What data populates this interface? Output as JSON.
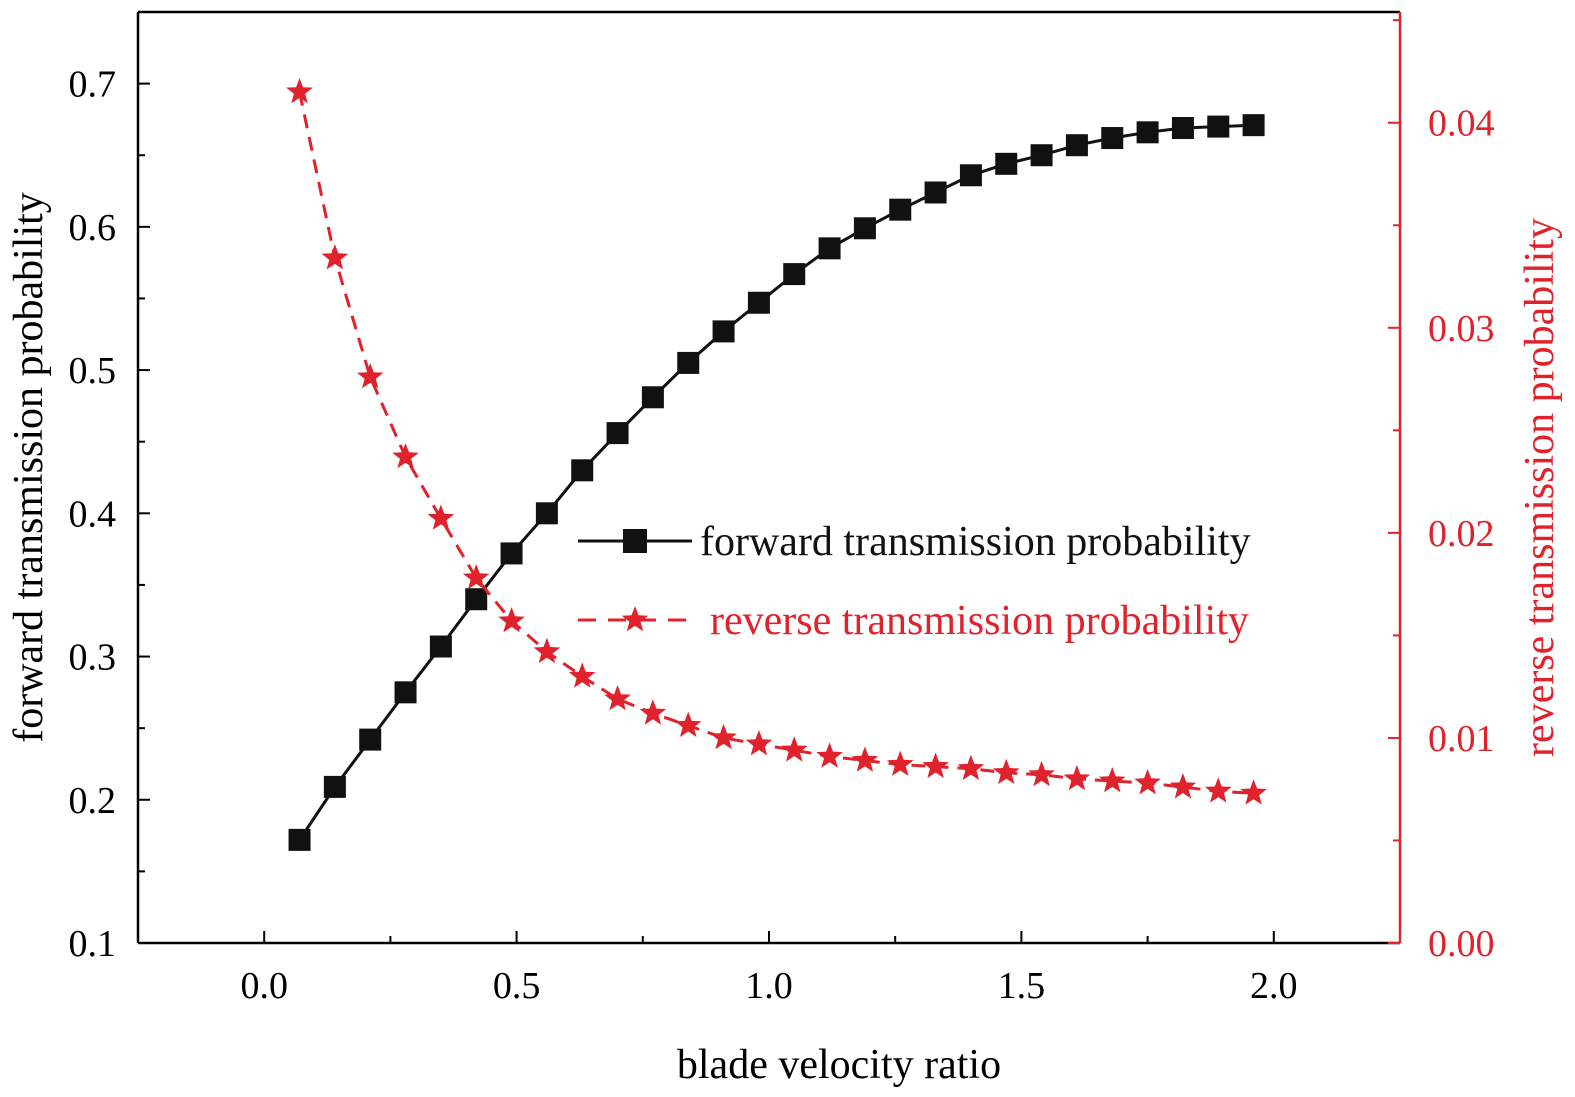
{
  "chart_data": {
    "type": "line",
    "xlabel": "blade velocity ratio",
    "ylabel": "forward transmission probability",
    "ylabel_right": "reverse transmission probability",
    "xlim": [
      -0.25,
      2.25
    ],
    "ylim": [
      0.1,
      0.75
    ],
    "ylim_right": [
      0.0,
      0.0454
    ],
    "x_ticks": [
      "0.0",
      "0.5",
      "1.0",
      "1.5",
      "2.0"
    ],
    "y_ticks": [
      "0.1",
      "0.2",
      "0.3",
      "0.4",
      "0.5",
      "0.6",
      "0.7"
    ],
    "y_ticks_right": [
      "0.00",
      "0.01",
      "0.02",
      "0.03",
      "0.04"
    ],
    "legend_position": "center-right",
    "series": [
      {
        "name": "forward transmission probability",
        "axis": "left",
        "color": "#111111",
        "marker": "square",
        "line": "solid",
        "x": [
          0.07,
          0.14,
          0.21,
          0.28,
          0.35,
          0.42,
          0.49,
          0.56,
          0.63,
          0.7,
          0.77,
          0.84,
          0.91,
          0.98,
          1.05,
          1.12,
          1.19,
          1.26,
          1.33,
          1.4,
          1.47,
          1.54,
          1.61,
          1.68,
          1.75,
          1.82,
          1.89,
          1.96
        ],
        "y": [
          0.172,
          0.209,
          0.242,
          0.275,
          0.307,
          0.34,
          0.372,
          0.4,
          0.43,
          0.456,
          0.481,
          0.505,
          0.527,
          0.547,
          0.567,
          0.585,
          0.599,
          0.612,
          0.624,
          0.636,
          0.644,
          0.65,
          0.657,
          0.662,
          0.666,
          0.669,
          0.67,
          0.671
        ]
      },
      {
        "name": "reverse transmission probability",
        "axis": "right",
        "color": "#e0222c",
        "marker": "star",
        "line": "dashed",
        "x": [
          0.07,
          0.14,
          0.21,
          0.28,
          0.35,
          0.42,
          0.49,
          0.56,
          0.63,
          0.7,
          0.77,
          0.84,
          0.91,
          0.98,
          1.05,
          1.12,
          1.19,
          1.26,
          1.33,
          1.4,
          1.47,
          1.54,
          1.61,
          1.68,
          1.75,
          1.82,
          1.89,
          1.96
        ],
        "y": [
          0.0415,
          0.0334,
          0.0276,
          0.0237,
          0.0207,
          0.0178,
          0.0157,
          0.0142,
          0.013,
          0.0119,
          0.0112,
          0.0106,
          0.01,
          0.0097,
          0.0094,
          0.0091,
          0.0089,
          0.0087,
          0.0086,
          0.0085,
          0.0083,
          0.0082,
          0.008,
          0.0079,
          0.0078,
          0.0076,
          0.0074,
          0.0073
        ]
      }
    ]
  }
}
